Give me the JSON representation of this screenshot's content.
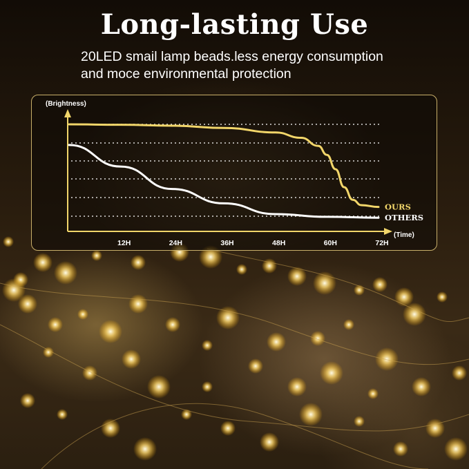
{
  "header": {
    "title": "Long-lasting Use",
    "subtitle_line1": "20LED smail lamp beads.less energy consumption",
    "subtitle_line2": "and moce environmental protection"
  },
  "colors": {
    "ours_line": "#f2d66a",
    "others_line": "#ffffff",
    "axis": "#f2d66a",
    "grid": "#ffffff",
    "panel_border": "#c9b06a"
  },
  "chart_data": {
    "type": "line",
    "ylabel": "(Brightness)",
    "xlabel": "(Time)",
    "x_ticks": [
      "12H",
      "24H",
      "36H",
      "48H",
      "60H",
      "72H"
    ],
    "xlim": [
      0,
      72
    ],
    "ylim": [
      0,
      100
    ],
    "y_scale_shown": false,
    "grid": "horizontal dotted",
    "series": [
      {
        "name": "OURS",
        "color": "#f2d66a",
        "x": [
          0,
          12,
          24,
          36,
          48,
          54,
          58,
          60,
          62,
          64,
          66,
          68,
          72
        ],
        "y": [
          100,
          99.5,
          98.5,
          96,
          91,
          85,
          76,
          66,
          50,
          30,
          16,
          10,
          8
        ]
      },
      {
        "name": "OTHERS",
        "color": "#ffffff",
        "x": [
          0,
          12,
          24,
          36,
          48,
          60,
          72
        ],
        "y": [
          77,
          53,
          28,
          12,
          0,
          -3,
          -4
        ]
      }
    ]
  }
}
